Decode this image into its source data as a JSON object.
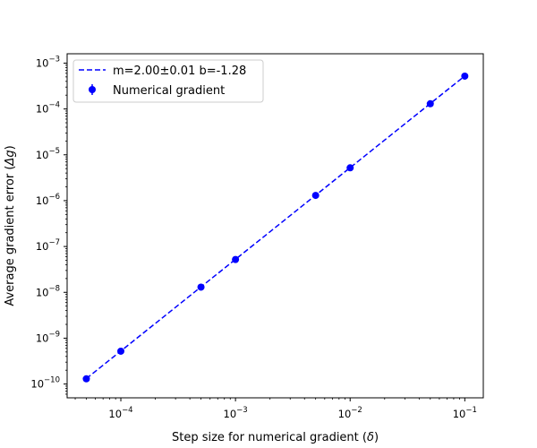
{
  "chart_data": {
    "type": "scatter",
    "xscale": "log",
    "yscale": "log",
    "xlabel_text": "Step size for numerical gradient (",
    "xlabel_symbol": "δ",
    "xlabel_end": ")",
    "ylabel_text": "Average gradient error (",
    "ylabel_symbol": "Δg",
    "ylabel_end": ")",
    "xlim": [
      3.4e-05,
      0.145
    ],
    "ylim": [
      5e-11,
      0.0016
    ],
    "x_ticks": [
      {
        "value": 0.0001,
        "base": "10",
        "exp": "−4"
      },
      {
        "value": 0.001,
        "base": "10",
        "exp": "−3"
      },
      {
        "value": 0.01,
        "base": "10",
        "exp": "−2"
      },
      {
        "value": 0.1,
        "base": "10",
        "exp": "−1"
      }
    ],
    "y_ticks": [
      {
        "value": 1e-10,
        "base": "10",
        "exp": "−10"
      },
      {
        "value": 1e-09,
        "base": "10",
        "exp": "−9"
      },
      {
        "value": 1e-08,
        "base": "10",
        "exp": "−8"
      },
      {
        "value": 1e-07,
        "base": "10",
        "exp": "−7"
      },
      {
        "value": 1e-06,
        "base": "10",
        "exp": "−6"
      },
      {
        "value": 1e-05,
        "base": "10",
        "exp": "−5"
      },
      {
        "value": 0.0001,
        "base": "10",
        "exp": "−4"
      },
      {
        "value": 0.001,
        "base": "10",
        "exp": "−3"
      }
    ],
    "series": [
      {
        "name": "Numerical gradient",
        "kind": "points-with-errorbars",
        "color": "#0000ff",
        "x": [
          5e-05,
          0.0001,
          0.0005,
          0.001,
          0.005,
          0.01,
          0.05,
          0.1
        ],
        "y": [
          1.3e-10,
          5.2e-10,
          1.3e-08,
          5.2e-08,
          1.3e-06,
          5.2e-06,
          0.00013,
          0.00052
        ]
      },
      {
        "name": "m=2.00±0.01 b=-1.28",
        "kind": "dashed-line-fit",
        "color": "#0000ff",
        "slope": 2.0,
        "intercept_log10": -1.28
      }
    ],
    "legend_position": "upper-left",
    "grid": false
  }
}
